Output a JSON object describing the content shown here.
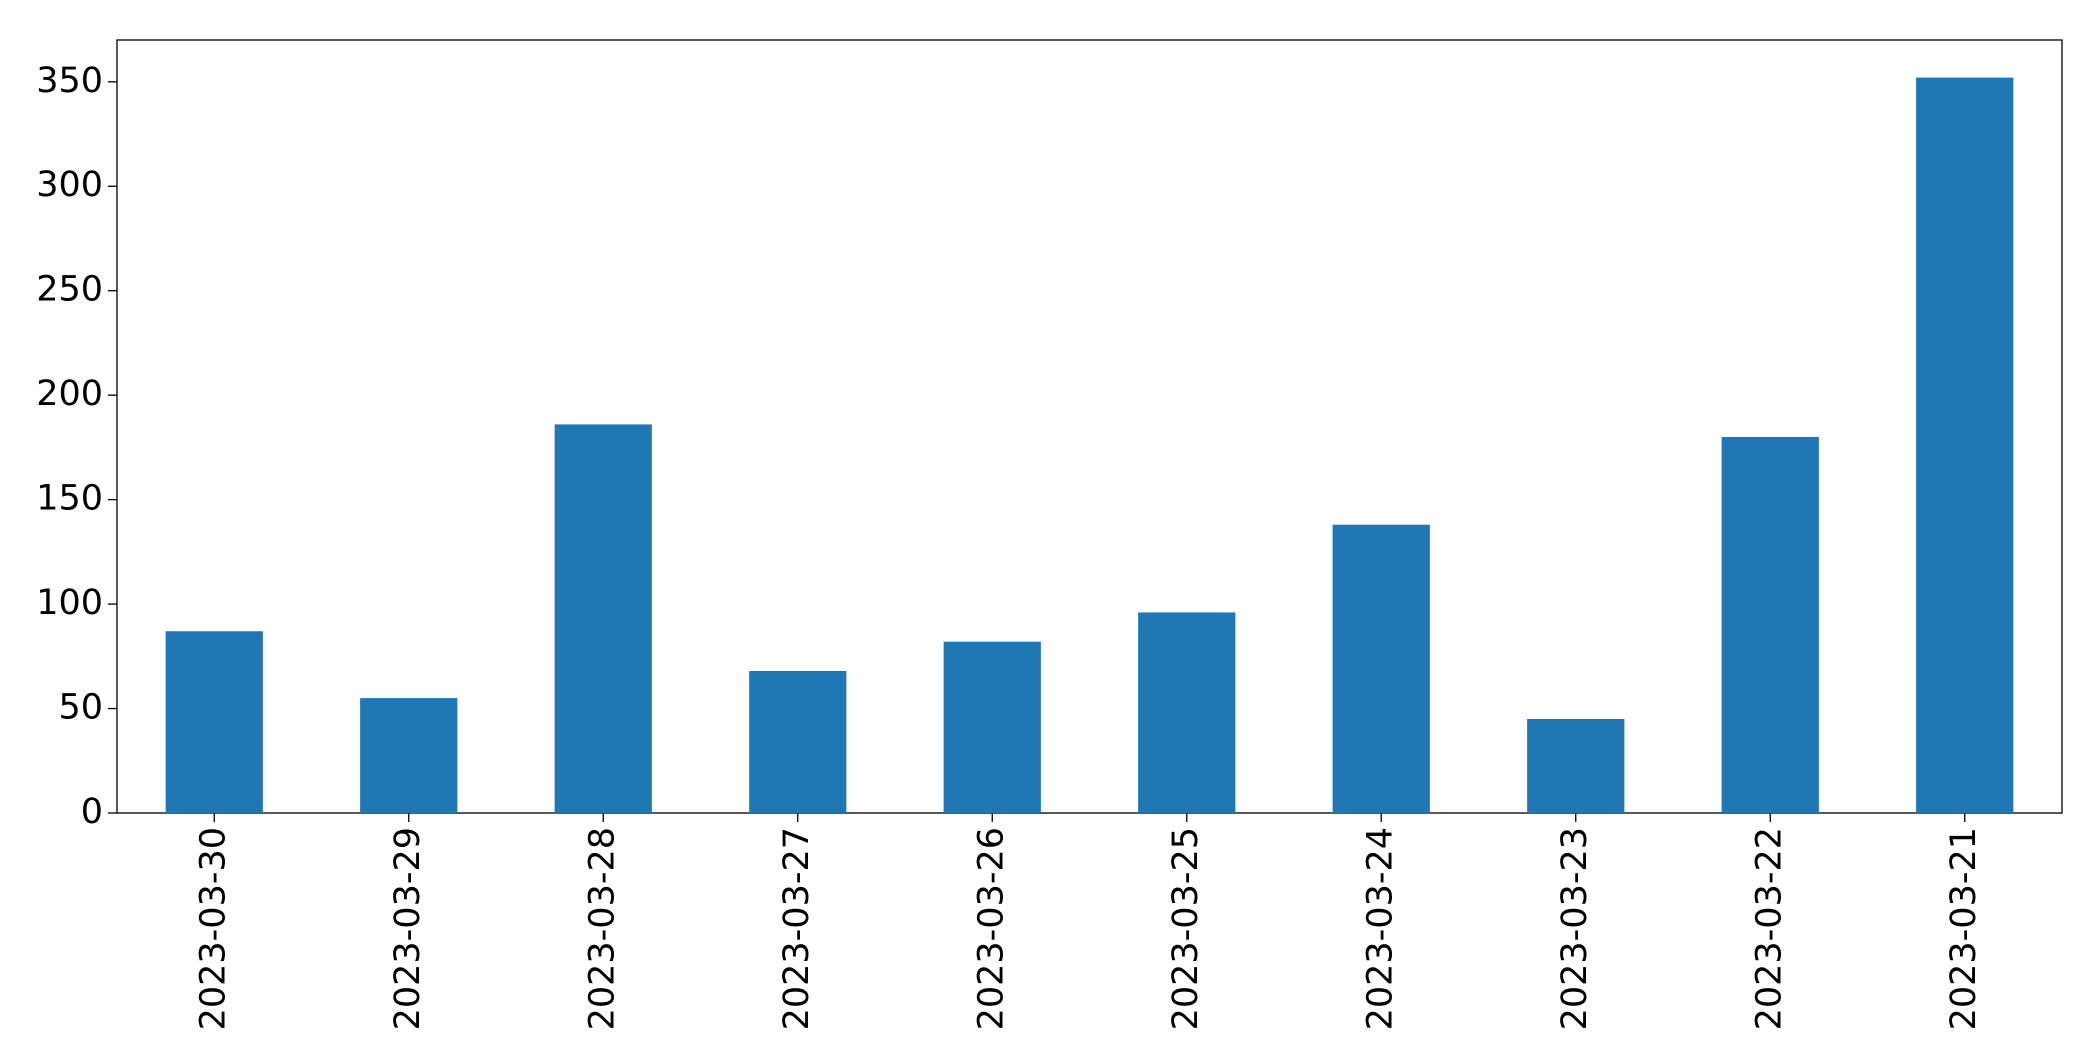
{
  "chart_data": {
    "type": "bar",
    "categories": [
      "2023-03-30",
      "2023-03-29",
      "2023-03-28",
      "2023-03-27",
      "2023-03-26",
      "2023-03-25",
      "2023-03-24",
      "2023-03-23",
      "2023-03-22",
      "2023-03-21"
    ],
    "values": [
      87,
      55,
      186,
      68,
      82,
      96,
      138,
      45,
      180,
      352
    ],
    "color": "#1f77b4",
    "ylim": [
      0,
      370
    ],
    "yticks": [
      0,
      50,
      100,
      150,
      200,
      250,
      300,
      350
    ],
    "grid": false
  }
}
